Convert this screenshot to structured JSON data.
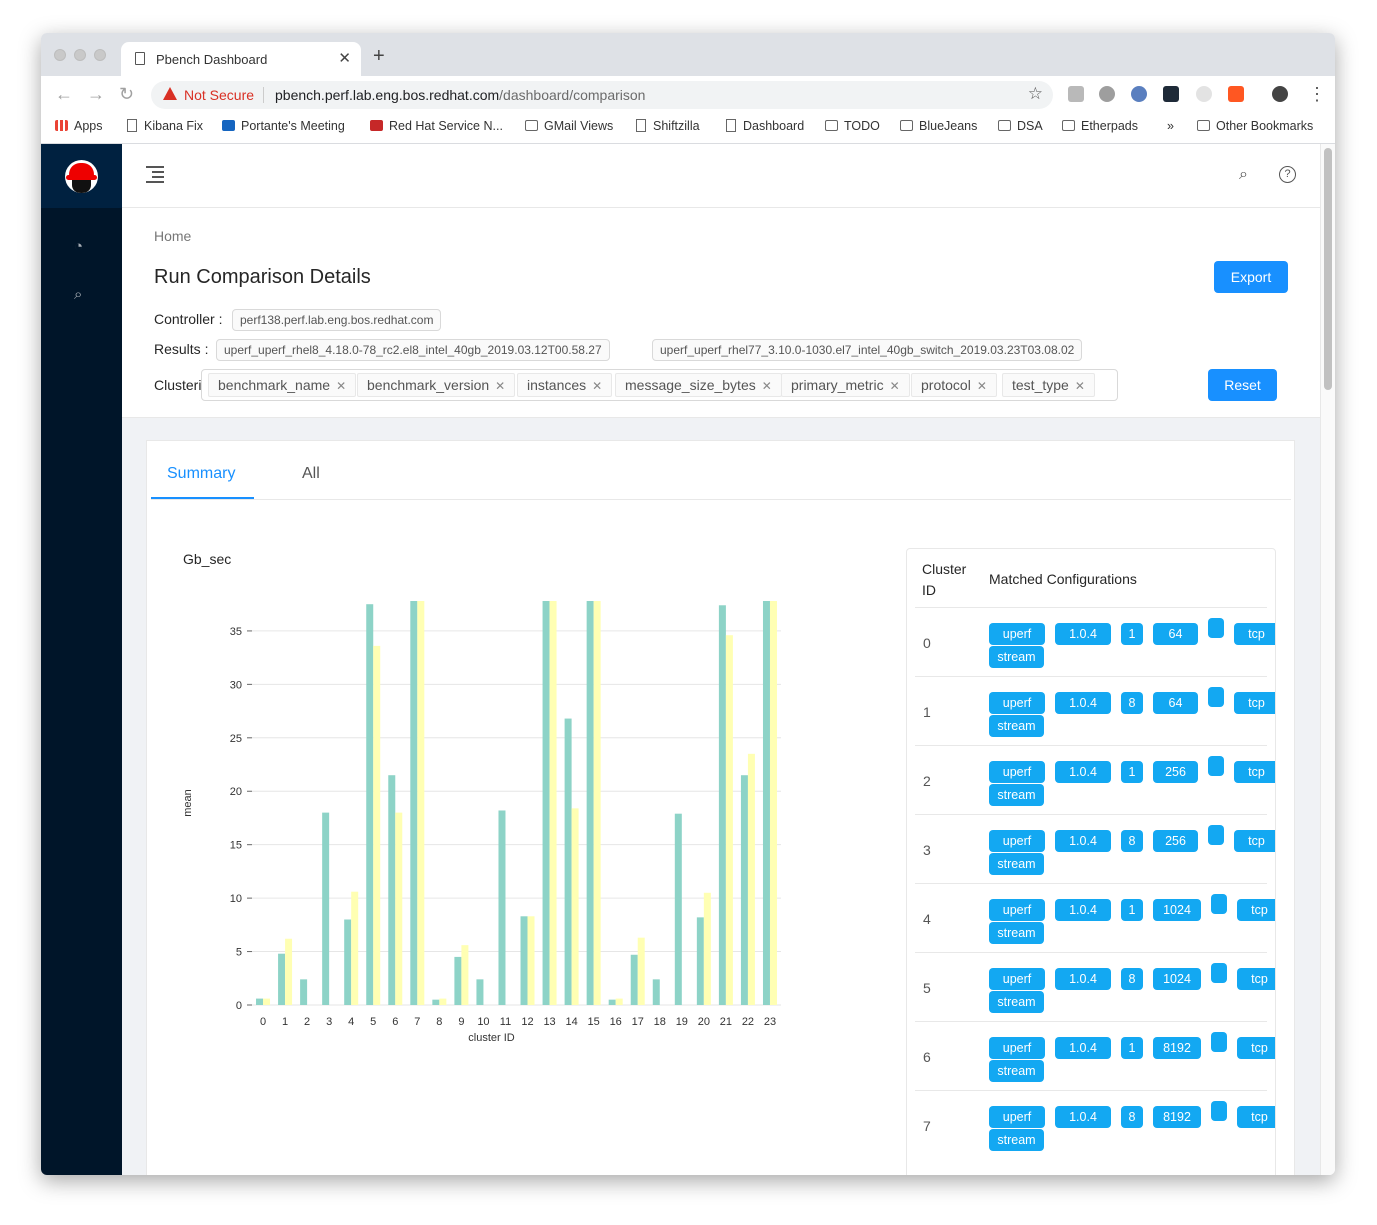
{
  "browser": {
    "tab_title": "Pbench Dashboard",
    "not_secure": "Not Secure",
    "url_host": "pbench.perf.lab.eng.bos.redhat.com",
    "url_path": "/dashboard/comparison",
    "bookmarks": [
      "Apps",
      "Kibana Fix",
      "Portante's Meeting",
      "Red Hat Service N...",
      "GMail Views",
      "Shiftzilla",
      "Dashboard",
      "TODO",
      "BlueJeans",
      "DSA",
      "Etherpads",
      "»",
      "Other Bookmarks"
    ]
  },
  "page": {
    "breadcrumb": "Home",
    "title": "Run Comparison Details",
    "export_label": "Export",
    "controller_label": "Controller :",
    "controller_value": "perf138.perf.lab.eng.bos.redhat.com",
    "results_label": "Results :",
    "results": [
      "uperf_uperf_rhel8_4.18.0-78_rc2.el8_intel_40gb_2019.03.12T00.58.27",
      "uperf_uperf_rhel77_3.10.0-1030.el7_intel_40gb_switch_2019.03.23T03.08.02"
    ],
    "clustering_label": "Clustering Config :",
    "clustering_tags": [
      "benchmark_name",
      "benchmark_version",
      "instances",
      "message_size_bytes",
      "primary_metric",
      "protocol",
      "test_type"
    ],
    "reset_label": "Reset",
    "tabs": [
      "Summary",
      "All"
    ],
    "active_tab": "Summary"
  },
  "chart_data": {
    "type": "bar",
    "title": "Gb_sec",
    "xlabel": "cluster ID",
    "ylabel": "mean",
    "ylim": [
      0,
      37.8
    ],
    "yticks": [
      0,
      5,
      10,
      15,
      20,
      25,
      30,
      35
    ],
    "categories": [
      "0",
      "1",
      "2",
      "3",
      "4",
      "5",
      "6",
      "7",
      "8",
      "9",
      "10",
      "11",
      "12",
      "13",
      "14",
      "15",
      "16",
      "17",
      "18",
      "19",
      "20",
      "21",
      "22",
      "23"
    ],
    "series": [
      {
        "color": "#8dd3c7",
        "values": [
          0.6,
          4.8,
          2.4,
          18.0,
          8.0,
          37.5,
          21.5,
          37.8,
          0.5,
          4.5,
          2.4,
          18.2,
          8.3,
          37.8,
          26.8,
          37.8,
          0.5,
          4.7,
          2.4,
          17.9,
          8.2,
          37.4,
          21.5,
          37.8
        ]
      },
      {
        "color": "#ffffb3",
        "values": [
          0.6,
          6.2,
          0,
          0,
          10.6,
          33.6,
          18.0,
          37.8,
          0.6,
          5.6,
          0,
          0,
          8.3,
          37.8,
          18.4,
          37.8,
          0.6,
          6.3,
          0,
          0,
          10.5,
          34.6,
          23.5,
          37.8
        ]
      }
    ],
    "grid": true
  },
  "table": {
    "col_id": "Cluster ID",
    "col_configs": "Matched Configurations",
    "rows": [
      {
        "id": "0",
        "configs": [
          "uperf",
          "1.0.4",
          "1",
          "64",
          "",
          "tcp",
          "stream"
        ]
      },
      {
        "id": "1",
        "configs": [
          "uperf",
          "1.0.4",
          "8",
          "64",
          "",
          "tcp",
          "stream"
        ]
      },
      {
        "id": "2",
        "configs": [
          "uperf",
          "1.0.4",
          "1",
          "256",
          "",
          "tcp",
          "stream"
        ]
      },
      {
        "id": "3",
        "configs": [
          "uperf",
          "1.0.4",
          "8",
          "256",
          "",
          "tcp",
          "stream"
        ]
      },
      {
        "id": "4",
        "configs": [
          "uperf",
          "1.0.4",
          "1",
          "1024",
          "",
          "tcp",
          "stream"
        ]
      },
      {
        "id": "5",
        "configs": [
          "uperf",
          "1.0.4",
          "8",
          "1024",
          "",
          "tcp",
          "stream"
        ]
      },
      {
        "id": "6",
        "configs": [
          "uperf",
          "1.0.4",
          "1",
          "8192",
          "",
          "tcp",
          "stream"
        ]
      },
      {
        "id": "7",
        "configs": [
          "uperf",
          "1.0.4",
          "8",
          "8192",
          "",
          "tcp",
          "stream"
        ]
      }
    ]
  }
}
